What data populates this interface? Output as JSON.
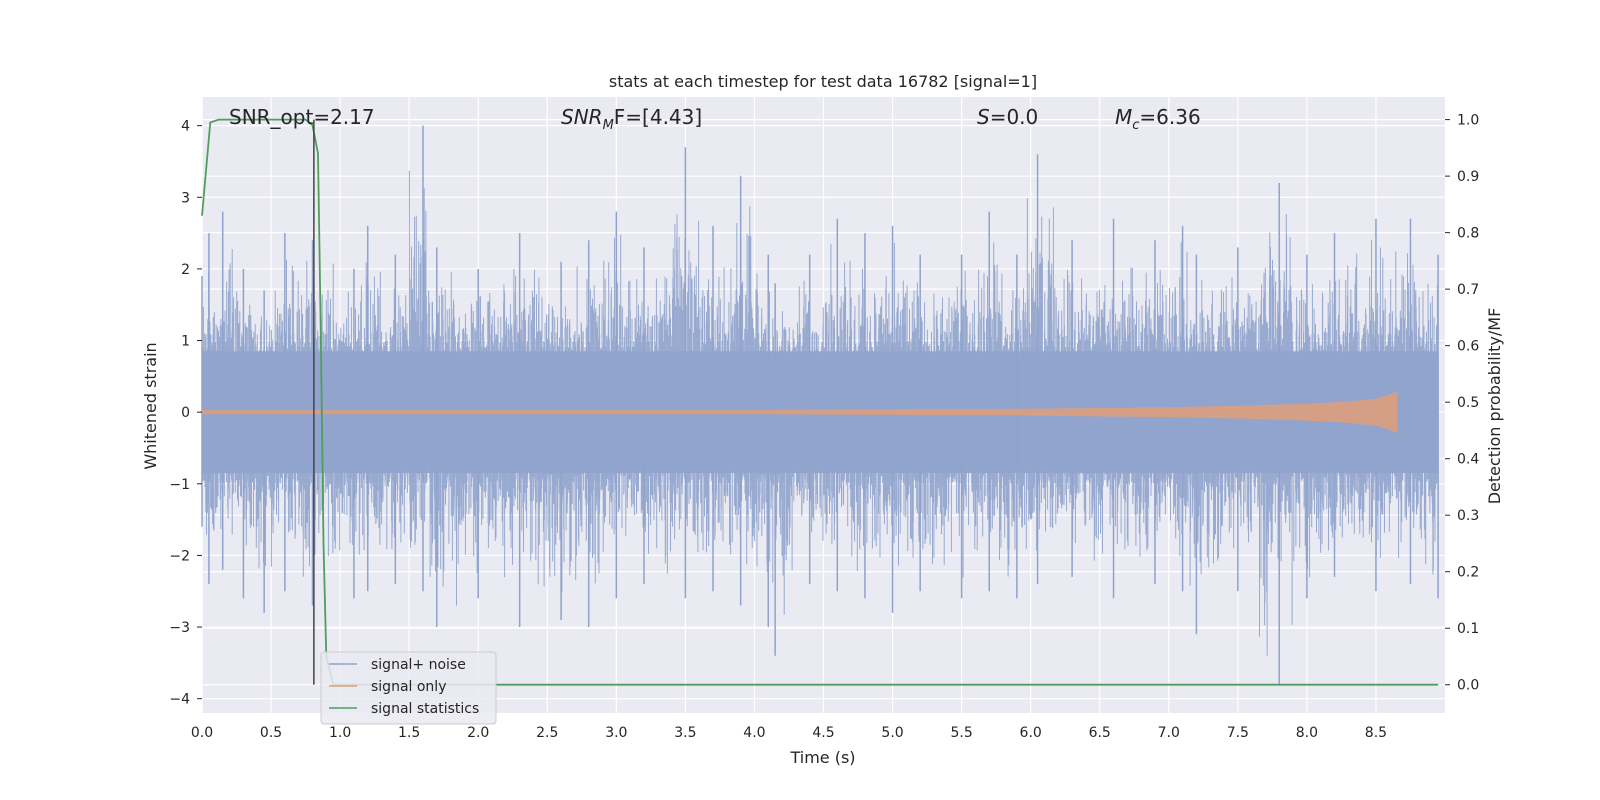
{
  "chart_data": {
    "type": "line",
    "title": "stats at each timestep for test data 16782 [signal=1]",
    "xlabel": "Time (s)",
    "ylabel": "Whitened strain",
    "y2label": "Detection probability/MF",
    "xlim": [
      0.0,
      9.0
    ],
    "ylim": [
      -4.2,
      4.4
    ],
    "y2lim": [
      -0.05,
      1.04
    ],
    "x_ticks": [
      0.0,
      0.5,
      1.0,
      1.5,
      2.0,
      2.5,
      3.0,
      3.5,
      4.0,
      4.5,
      5.0,
      5.5,
      6.0,
      6.5,
      7.0,
      7.5,
      8.0,
      8.5
    ],
    "x_tick_labels": [
      "0.0",
      "0.5",
      "1.0",
      "1.5",
      "2.0",
      "2.5",
      "3.0",
      "3.5",
      "4.0",
      "4.5",
      "5.0",
      "5.5",
      "6.0",
      "6.5",
      "7.0",
      "7.5",
      "8.0",
      "8.5"
    ],
    "y_ticks": [
      -4,
      -3,
      -2,
      -1,
      0,
      1,
      2,
      3,
      4
    ],
    "y_tick_labels": [
      "−4",
      "−3",
      "−2",
      "−1",
      "0",
      "1",
      "2",
      "3",
      "4"
    ],
    "y2_ticks": [
      0.0,
      0.1,
      0.2,
      0.3,
      0.4,
      0.5,
      0.6,
      0.7,
      0.8,
      0.9,
      1.0
    ],
    "y2_tick_labels": [
      "0.0",
      "0.1",
      "0.2",
      "0.3",
      "0.4",
      "0.5",
      "0.6",
      "0.7",
      "0.8",
      "0.9",
      "1.0"
    ],
    "grid": true,
    "legend_position": "bottom-left",
    "annotations": {
      "snr_opt": "SNR_opt=2.17",
      "snr_mf_base": "SNR",
      "snr_mf_sub": "M",
      "snr_mf_rest": "F=[4.43]",
      "s_base": "S",
      "s_rest": "=0.0",
      "mc_base": "M",
      "mc_sub": "c",
      "mc_rest": "=6.36"
    },
    "marker_line_x": 0.81,
    "series": [
      {
        "name": "signal+ noise",
        "color": "#8fa3cc",
        "description_free": true,
        "spikes": [
          [
            0.0,
            1.9,
            -1.6
          ],
          [
            0.05,
            2.5,
            -2.4
          ],
          [
            0.15,
            2.8,
            -2.2
          ],
          [
            0.3,
            2.0,
            -2.6
          ],
          [
            0.45,
            1.7,
            -2.8
          ],
          [
            0.6,
            2.5,
            -2.5
          ],
          [
            0.8,
            2.4,
            -2.7
          ],
          [
            1.1,
            2.0,
            -2.6
          ],
          [
            1.2,
            2.6,
            -2.5
          ],
          [
            1.4,
            2.2,
            -2.4
          ],
          [
            1.6,
            4.0,
            -2.5
          ],
          [
            1.7,
            2.3,
            -3.0
          ],
          [
            2.0,
            2.0,
            -2.6
          ],
          [
            2.3,
            2.5,
            -3.0
          ],
          [
            2.6,
            2.1,
            -2.9
          ],
          [
            2.8,
            2.4,
            -3.0
          ],
          [
            3.0,
            2.8,
            -2.6
          ],
          [
            3.2,
            2.3,
            -2.4
          ],
          [
            3.5,
            3.7,
            -2.6
          ],
          [
            3.7,
            2.6,
            -2.5
          ],
          [
            3.9,
            3.3,
            -2.7
          ],
          [
            4.1,
            2.2,
            -3.0
          ],
          [
            4.15,
            1.8,
            -3.4
          ],
          [
            4.4,
            2.2,
            -2.4
          ],
          [
            4.6,
            2.7,
            -2.5
          ],
          [
            4.8,
            2.5,
            -2.6
          ],
          [
            5.0,
            2.6,
            -2.8
          ],
          [
            5.2,
            2.2,
            -2.5
          ],
          [
            5.5,
            2.2,
            -2.6
          ],
          [
            5.7,
            2.8,
            -2.5
          ],
          [
            5.9,
            2.2,
            -2.6
          ],
          [
            6.05,
            3.6,
            -2.4
          ],
          [
            6.3,
            2.4,
            -2.3
          ],
          [
            6.6,
            2.7,
            -2.6
          ],
          [
            6.9,
            2.4,
            -2.4
          ],
          [
            7.1,
            2.6,
            -2.5
          ],
          [
            7.2,
            2.2,
            -3.1
          ],
          [
            7.5,
            2.3,
            -2.5
          ],
          [
            7.8,
            3.2,
            -3.8
          ],
          [
            8.0,
            2.2,
            -2.6
          ],
          [
            8.2,
            2.5,
            -2.3
          ],
          [
            8.5,
            2.7,
            -2.5
          ],
          [
            8.75,
            2.7,
            -2.4
          ],
          [
            8.95,
            2.2,
            -2.6
          ]
        ]
      },
      {
        "name": "signal only",
        "color": "#dd9f7f",
        "x": [
          0.0,
          2.0,
          4.0,
          5.0,
          6.0,
          7.0,
          7.5,
          8.0,
          8.3,
          8.5,
          8.6,
          8.65
        ],
        "y_upper": [
          0.02,
          0.02,
          0.02,
          0.03,
          0.04,
          0.06,
          0.08,
          0.11,
          0.14,
          0.18,
          0.24,
          0.28
        ],
        "y_lower": [
          -0.02,
          -0.02,
          -0.02,
          -0.03,
          -0.04,
          -0.06,
          -0.08,
          -0.11,
          -0.14,
          -0.18,
          -0.24,
          -0.28
        ]
      },
      {
        "name": "signal statistics",
        "color": "#4f9e5c",
        "axis": "right",
        "x": [
          0.0,
          0.06,
          0.12,
          0.2,
          0.4,
          0.6,
          0.75,
          0.8,
          0.84,
          0.86,
          0.88,
          0.9,
          0.95,
          2.0,
          4.0,
          5.0,
          6.0,
          7.0,
          8.0,
          8.6,
          8.95
        ],
        "y": [
          0.83,
          0.995,
          1.0,
          1.0,
          1.0,
          1.0,
          1.0,
          0.99,
          0.94,
          0.62,
          0.25,
          0.05,
          0.0,
          0.0,
          0.0,
          0.0,
          0.0,
          0.0,
          0.0,
          0.0,
          0.0
        ]
      }
    ]
  }
}
